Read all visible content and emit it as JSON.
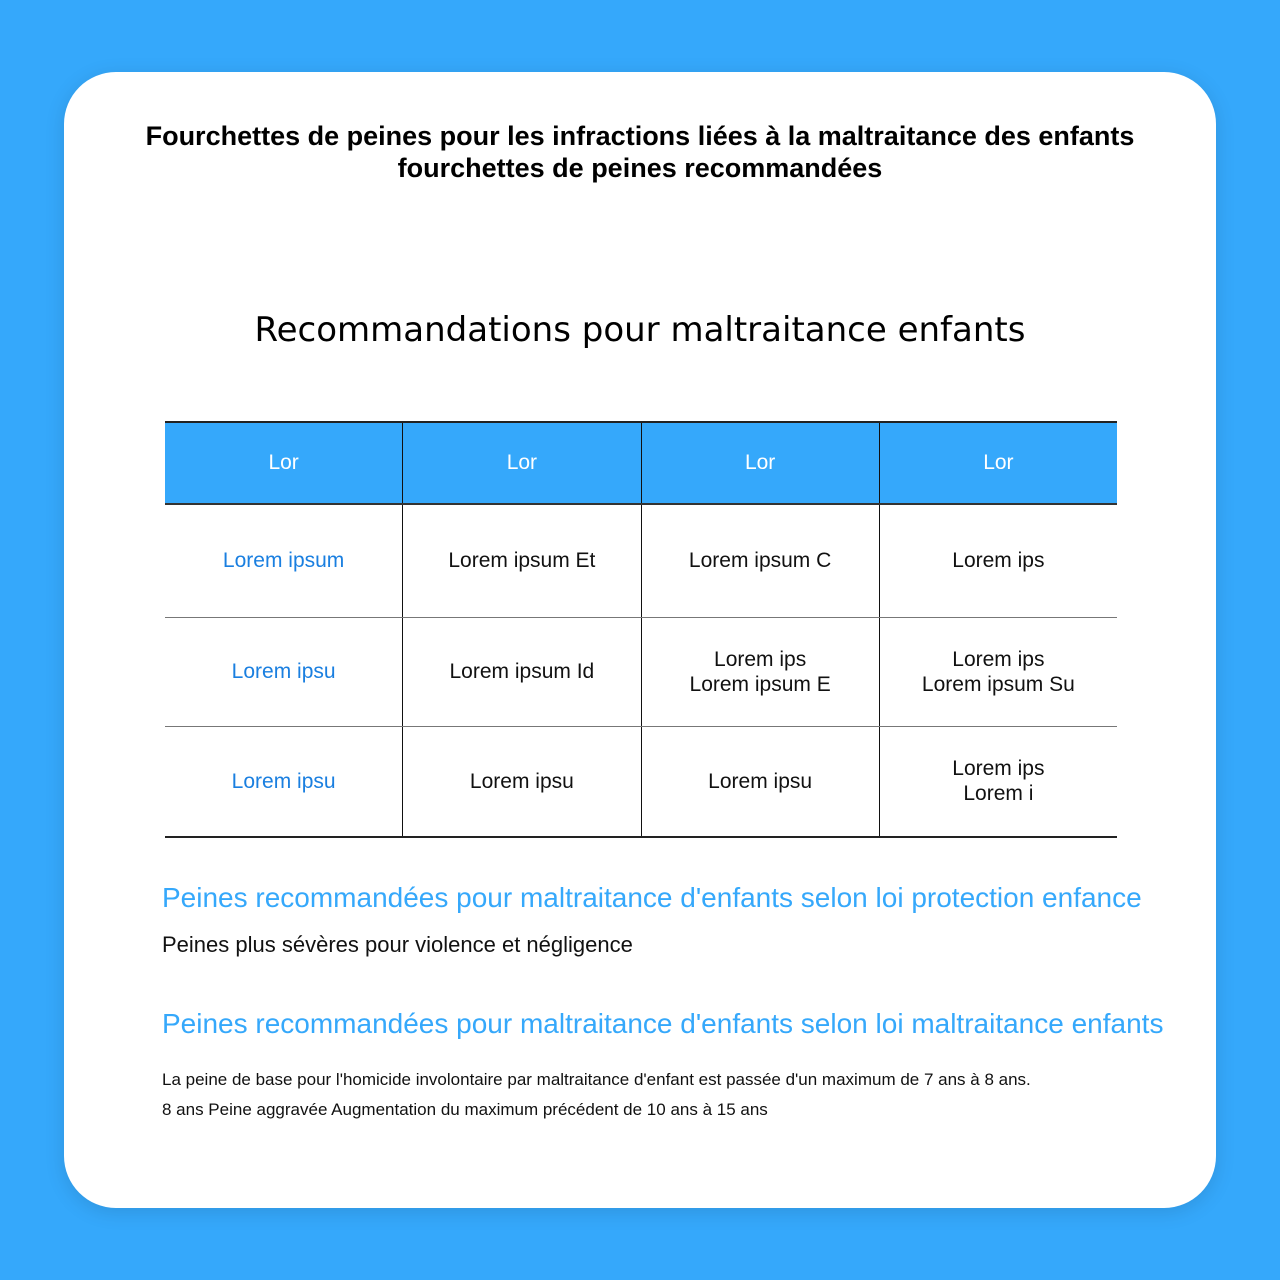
{
  "colors": {
    "background": "#35a8fb",
    "header": "#35a8fb",
    "link": "#1a7fe0"
  },
  "title_line1": "Fourchettes de peines pour les infractions liées à la maltraitance des enfants",
  "title_line2": "fourchettes de peines recommandées",
  "subtitle": "Recommandations pour maltraitance enfants",
  "table": {
    "headers": [
      "Lor",
      "Lor",
      "Lor",
      "Lor"
    ],
    "rows": [
      [
        [
          "Lorem ipsum"
        ],
        [
          "Lorem ipsum Et"
        ],
        [
          "Lorem ipsum C"
        ],
        [
          "Lorem ips"
        ]
      ],
      [
        [
          "Lorem ipsu"
        ],
        [
          "Lorem ipsum Id"
        ],
        [
          "Lorem ips",
          "Lorem ipsum E"
        ],
        [
          "Lorem ips",
          "Lorem ipsum Su"
        ]
      ],
      [
        [
          "Lorem ipsu"
        ],
        [
          "Lorem ipsu"
        ],
        [
          "Lorem ipsu"
        ],
        [
          "Lorem ips",
          "Lorem i"
        ]
      ]
    ]
  },
  "section1": {
    "heading": "Peines recommandées pour maltraitance d'enfants selon loi protection enfance",
    "text": "Peines plus sévères pour violence et négligence"
  },
  "section2": {
    "heading": "Peines recommandées pour maltraitance d'enfants selon loi maltraitance enfants",
    "line1": "La peine de base pour l'homicide involontaire par maltraitance d'enfant est passée d'un maximum de 7 ans à 8 ans.",
    "line2": "8 ans Peine aggravée Augmentation du maximum précédent de 10 ans à 15 ans"
  }
}
